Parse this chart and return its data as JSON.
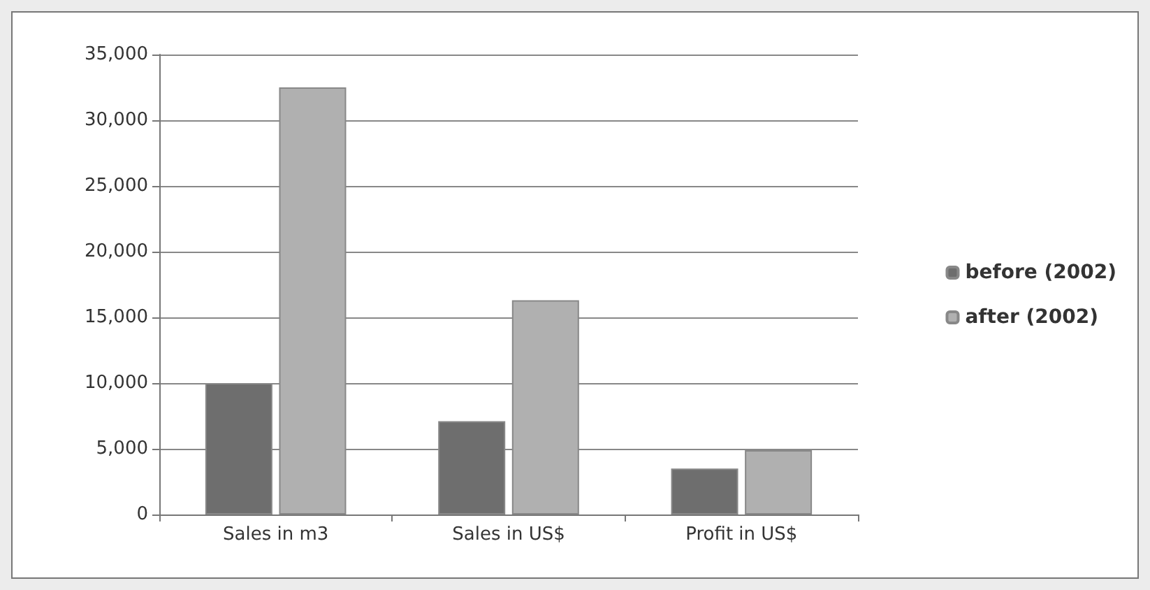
{
  "chart_data": {
    "type": "bar",
    "categories": [
      "Sales in m3",
      "Sales in US$",
      "Profit in US$"
    ],
    "series": [
      {
        "name": "before (2002)",
        "color": "#6e6e6e",
        "values": [
          10000,
          7100,
          3500
        ]
      },
      {
        "name": "after (2002)",
        "color": "#b0b0b0",
        "values": [
          32500,
          16300,
          4900
        ]
      }
    ],
    "ylim": [
      0,
      35000
    ],
    "yticks": [
      0,
      {
        "value": 5000,
        "label": "5,000"
      },
      {
        "value": 10000,
        "label": "10,000"
      },
      {
        "value": 15000,
        "label": "15,000"
      },
      {
        "value": 20000,
        "label": "20,000"
      },
      {
        "value": 25000,
        "label": "25,000"
      },
      {
        "value": 30000,
        "label": "30,000"
      },
      {
        "value": 35000,
        "label": "35,000"
      }
    ],
    "grid": "y",
    "legend": "right"
  }
}
